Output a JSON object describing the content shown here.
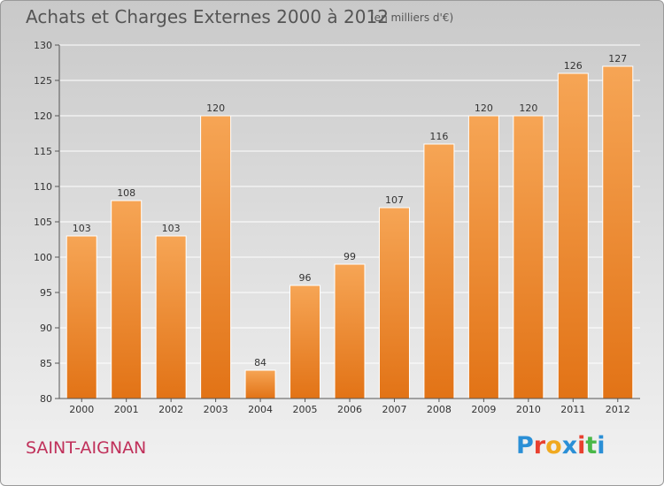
{
  "chart_data": {
    "type": "bar",
    "title": "Achats et Charges Externes 2000 à 2012",
    "subtitle": "(en milliers d'€)",
    "categories": [
      "2000",
      "2001",
      "2002",
      "2003",
      "2004",
      "2005",
      "2006",
      "2007",
      "2008",
      "2009",
      "2010",
      "2011",
      "2012"
    ],
    "values": [
      103,
      108,
      103,
      120,
      84,
      96,
      99,
      107,
      116,
      120,
      120,
      126,
      127
    ],
    "ylim": [
      80,
      130
    ],
    "yticks": [
      80,
      85,
      90,
      95,
      100,
      105,
      110,
      115,
      120,
      125,
      130
    ],
    "grid": true,
    "bar_color": "#f2913c"
  },
  "location": "SAINT-AIGNAN",
  "brand": {
    "letters": [
      "P",
      "r",
      "o",
      "x",
      "i",
      "t",
      "i"
    ],
    "colors": [
      "#2a8fd6",
      "#e8402f",
      "#f0a91f",
      "#2a8fd6",
      "#e8402f",
      "#4ab848",
      "#2a8fd6"
    ]
  }
}
